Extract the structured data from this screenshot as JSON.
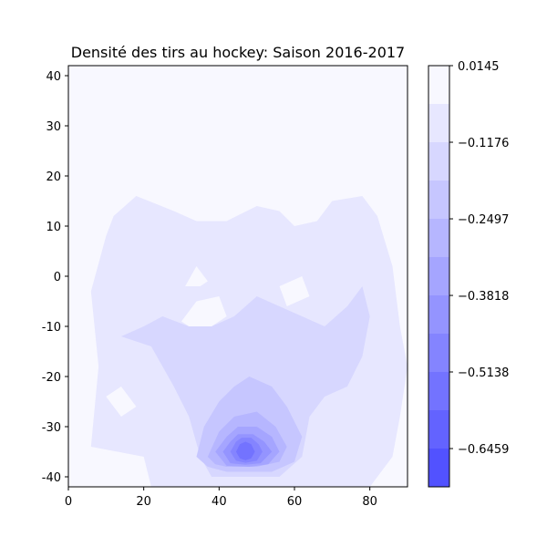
{
  "chart_data": {
    "type": "heatmap",
    "title": "Densité des tirs au hockey: Saison 2016-2017",
    "xlabel": "",
    "ylabel": "",
    "xlim": [
      0,
      90
    ],
    "ylim": [
      -42,
      42
    ],
    "x_ticks": [
      0,
      20,
      40,
      60,
      80
    ],
    "y_ticks": [
      40,
      30,
      20,
      10,
      0,
      -10,
      -20,
      -30,
      -40
    ],
    "colorbar": {
      "range": [
        -0.7119,
        0.0145
      ],
      "ticks": [
        0.0145,
        -0.1176,
        -0.2497,
        -0.3818,
        -0.5138,
        -0.6459
      ],
      "tick_labels": [
        "0.0145",
        "−0.1176",
        "−0.2497",
        "−0.3818",
        "−0.5138",
        "−0.6459"
      ],
      "levels": 11,
      "color_low": "#5252ff",
      "color_high": "#f8f8ff"
    },
    "regions": [
      {
        "level": 1,
        "points": [
          [
            6,
            -34
          ],
          [
            8,
            -18
          ],
          [
            6,
            -3
          ],
          [
            10,
            8
          ],
          [
            12,
            12
          ],
          [
            18,
            16
          ],
          [
            28,
            13
          ],
          [
            34,
            11
          ],
          [
            42,
            11
          ],
          [
            50,
            14
          ],
          [
            56,
            13
          ],
          [
            60,
            10
          ],
          [
            66,
            11
          ],
          [
            70,
            15
          ],
          [
            78,
            16
          ],
          [
            82,
            12
          ],
          [
            86,
            2
          ],
          [
            88,
            -10
          ],
          [
            90,
            -18
          ],
          [
            88,
            -28
          ],
          [
            86,
            -36
          ],
          [
            80,
            -42
          ],
          [
            22,
            -42
          ],
          [
            20,
            -36
          ]
        ]
      },
      {
        "level": 2,
        "points": [
          [
            14,
            -12
          ],
          [
            22,
            -14
          ],
          [
            28,
            -22
          ],
          [
            32,
            -28
          ],
          [
            35,
            -36
          ],
          [
            38,
            -40
          ],
          [
            56,
            -40
          ],
          [
            62,
            -36
          ],
          [
            64,
            -28
          ],
          [
            68,
            -24
          ],
          [
            74,
            -22
          ],
          [
            78,
            -16
          ],
          [
            80,
            -8
          ],
          [
            78,
            -2
          ],
          [
            74,
            -6
          ],
          [
            68,
            -10
          ],
          [
            62,
            -8
          ],
          [
            56,
            -6
          ],
          [
            50,
            -4
          ],
          [
            44,
            -8
          ],
          [
            38,
            -10
          ],
          [
            32,
            -10
          ],
          [
            25,
            -8
          ],
          [
            20,
            -10
          ]
        ]
      },
      {
        "level": 3,
        "points": [
          [
            34,
            -36
          ],
          [
            36,
            -30
          ],
          [
            40,
            -25
          ],
          [
            44,
            -22
          ],
          [
            48,
            -20
          ],
          [
            54,
            -22
          ],
          [
            58,
            -26
          ],
          [
            62,
            -32
          ],
          [
            60,
            -37
          ],
          [
            54,
            -39
          ],
          [
            42,
            -39
          ],
          [
            37,
            -38
          ]
        ]
      },
      {
        "level": 4,
        "points": [
          [
            37,
            -36
          ],
          [
            40,
            -31
          ],
          [
            44,
            -28
          ],
          [
            50,
            -27
          ],
          [
            55,
            -30
          ],
          [
            58,
            -34
          ],
          [
            56,
            -37
          ],
          [
            50,
            -38
          ],
          [
            42,
            -38
          ],
          [
            39,
            -37.5
          ]
        ]
      },
      {
        "level": 5,
        "points": [
          [
            39,
            -35
          ],
          [
            42,
            -32
          ],
          [
            45,
            -30
          ],
          [
            50,
            -30
          ],
          [
            54,
            -32
          ],
          [
            56,
            -35
          ],
          [
            53,
            -37.5
          ],
          [
            48,
            -38
          ],
          [
            42,
            -37.8
          ]
        ]
      },
      {
        "level": 6,
        "points": [
          [
            41,
            -35
          ],
          [
            43,
            -33
          ],
          [
            45,
            -31.5
          ],
          [
            49,
            -31.5
          ],
          [
            52,
            -33
          ],
          [
            54,
            -35
          ],
          [
            51,
            -37.3
          ],
          [
            47,
            -37.6
          ],
          [
            43,
            -37.3
          ]
        ]
      },
      {
        "level": 7,
        "points": [
          [
            43,
            -35
          ],
          [
            44.5,
            -33
          ],
          [
            46,
            -32.2
          ],
          [
            48.5,
            -32.2
          ],
          [
            50.5,
            -33.5
          ],
          [
            51.5,
            -35
          ],
          [
            50,
            -36.8
          ],
          [
            47,
            -37.2
          ],
          [
            44.5,
            -36.8
          ]
        ]
      },
      {
        "level": 8,
        "points": [
          [
            44.5,
            -35
          ],
          [
            45.5,
            -33.5
          ],
          [
            47,
            -33
          ],
          [
            48.5,
            -33.5
          ],
          [
            49.5,
            -35
          ],
          [
            48.5,
            -36.3
          ],
          [
            47,
            -36.7
          ],
          [
            45.5,
            -36.3
          ]
        ]
      }
    ],
    "holes": [
      {
        "points": [
          [
            30,
            -9
          ],
          [
            34,
            -5
          ],
          [
            40,
            -4
          ],
          [
            42,
            -8
          ],
          [
            38,
            -10
          ],
          [
            32,
            -10
          ]
        ]
      },
      {
        "points": [
          [
            31,
            -2
          ],
          [
            34,
            2
          ],
          [
            37,
            -1
          ],
          [
            35,
            -2
          ]
        ]
      },
      {
        "points": [
          [
            56,
            -2
          ],
          [
            62,
            0
          ],
          [
            64,
            -4
          ],
          [
            58,
            -6
          ]
        ]
      },
      {
        "points": [
          [
            10,
            -24
          ],
          [
            14,
            -22
          ],
          [
            18,
            -26
          ],
          [
            14,
            -28
          ]
        ]
      }
    ]
  }
}
